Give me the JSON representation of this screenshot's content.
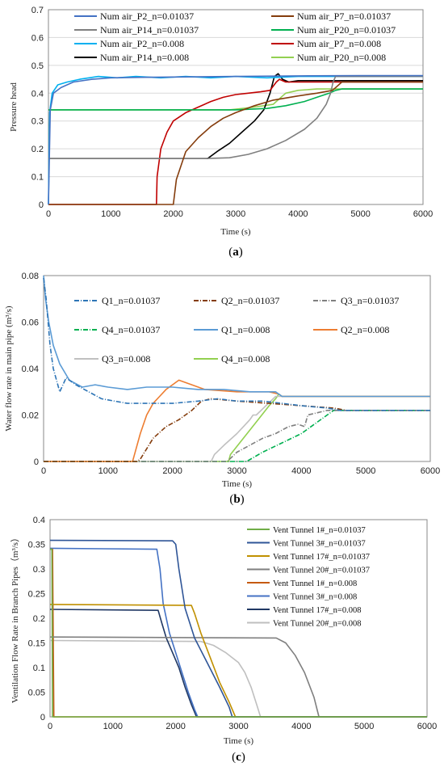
{
  "chart_data": [
    {
      "type": "line",
      "id": "a",
      "caption": "a",
      "xlabel": "Time (s)",
      "ylabel": "Pressure head",
      "xlim": [
        0,
        6000
      ],
      "ylim": [
        0,
        0.7
      ],
      "xticks": [
        0,
        1000,
        2000,
        3000,
        4000,
        5000,
        6000
      ],
      "yticks": [
        0,
        0.1,
        0.2,
        0.3,
        0.4,
        0.5,
        0.6,
        0.7
      ],
      "grid": true,
      "legend_position": "top",
      "series": [
        {
          "name": "Num air_P2_n=0.01037",
          "color": "#4472c4",
          "dash": "",
          "x": [
            0,
            30,
            80,
            200,
            400,
            700,
            1000,
            1500,
            2000,
            3000,
            4000,
            5000,
            6000
          ],
          "y": [
            0,
            0.34,
            0.4,
            0.42,
            0.44,
            0.45,
            0.455,
            0.457,
            0.458,
            0.46,
            0.462,
            0.463,
            0.463
          ]
        },
        {
          "name": "Num air_P7_n=0.01037",
          "color": "#843c0c",
          "dash": "",
          "x": [
            0,
            1990,
            2000,
            2050,
            2200,
            2400,
            2600,
            2800,
            3000,
            3300,
            3600,
            4000,
            4300,
            4550,
            4700,
            5000,
            6000
          ],
          "y": [
            0,
            0,
            0.0,
            0.09,
            0.19,
            0.24,
            0.28,
            0.31,
            0.33,
            0.355,
            0.375,
            0.39,
            0.4,
            0.41,
            0.44,
            0.44,
            0.44
          ]
        },
        {
          "name": "Num air_P14_n=0.01037",
          "color": "#7f7f7f",
          "dash": "",
          "x": [
            0,
            2500,
            2900,
            3200,
            3500,
            3800,
            4100,
            4300,
            4450,
            4520,
            4560,
            4600,
            5000,
            6000
          ],
          "y": [
            0.165,
            0.165,
            0.168,
            0.18,
            0.2,
            0.23,
            0.27,
            0.31,
            0.36,
            0.4,
            0.44,
            0.46,
            0.46,
            0.46
          ]
        },
        {
          "name": "Num air_P20_n=0.01037",
          "color": "#00b050",
          "dash": "",
          "x": [
            0,
            3000,
            3500,
            3800,
            4100,
            4300,
            4500,
            4600,
            4700,
            5000,
            6000
          ],
          "y": [
            0.34,
            0.34,
            0.345,
            0.355,
            0.37,
            0.385,
            0.4,
            0.41,
            0.415,
            0.415,
            0.415
          ]
        },
        {
          "name": "Num air_P2_n=0.008",
          "color": "#00b0f0",
          "dash": "",
          "x": [
            0,
            20,
            60,
            150,
            300,
            500,
            800,
            1100,
            1400,
            1800,
            2200,
            2600,
            3000,
            3500,
            4000,
            5000,
            6000
          ],
          "y": [
            0,
            0.33,
            0.4,
            0.43,
            0.44,
            0.45,
            0.46,
            0.455,
            0.46,
            0.455,
            0.46,
            0.455,
            0.46,
            0.455,
            0.46,
            0.46,
            0.46
          ]
        },
        {
          "name": "Num air_P7_n=0.008",
          "color": "#c00000",
          "dash": "",
          "x": [
            0,
            1730,
            1740,
            1800,
            1900,
            2000,
            2200,
            2400,
            2600,
            2800,
            3000,
            3200,
            3400,
            3550,
            3650,
            3700,
            3800,
            4000,
            6000
          ],
          "y": [
            0,
            0,
            0.1,
            0.2,
            0.26,
            0.3,
            0.33,
            0.35,
            0.37,
            0.385,
            0.395,
            0.4,
            0.405,
            0.41,
            0.44,
            0.45,
            0.44,
            0.44,
            0.44
          ]
        },
        {
          "name": "Num air_P14_n=0.008",
          "color": "#000000",
          "dash": "",
          "x": [
            0,
            2550,
            2700,
            2900,
            3100,
            3300,
            3450,
            3550,
            3620,
            3680,
            3750,
            3850,
            4000,
            6000
          ],
          "y": [
            0.165,
            0.165,
            0.19,
            0.22,
            0.26,
            0.3,
            0.34,
            0.4,
            0.46,
            0.47,
            0.45,
            0.44,
            0.445,
            0.445
          ]
        },
        {
          "name": "Num air_P20_n=0.008",
          "color": "#92d050",
          "dash": "",
          "x": [
            0,
            2900,
            3300,
            3600,
            3700,
            3800,
            4000,
            4300,
            4600,
            5000,
            6000
          ],
          "y": [
            0.34,
            0.34,
            0.35,
            0.36,
            0.38,
            0.4,
            0.41,
            0.415,
            0.415,
            0.415,
            0.415
          ]
        }
      ]
    },
    {
      "type": "line",
      "id": "b",
      "caption": "b",
      "xlabel": "Time (s)",
      "ylabel": "Water flow rate in main pipe (m³/s)",
      "xlim": [
        0,
        6000
      ],
      "ylim": [
        0,
        0.08
      ],
      "xticks": [
        0,
        1000,
        2000,
        3000,
        4000,
        5000,
        6000
      ],
      "yticks": [
        0,
        0.02,
        0.04,
        0.06,
        0.08
      ],
      "grid": false,
      "legend_position": "top",
      "series": [
        {
          "name": "Q1_n=0.01037",
          "color": "#2e75b6",
          "dash": "6 2 1 2",
          "x": [
            0,
            40,
            100,
            150,
            250,
            350,
            500,
            700,
            900,
            1100,
            1300,
            1500,
            2000,
            2400,
            2700,
            3000,
            3400,
            3700,
            4000,
            4400,
            4600,
            6000
          ],
          "y": [
            0.079,
            0.07,
            0.05,
            0.04,
            0.03,
            0.036,
            0.033,
            0.03,
            0.027,
            0.026,
            0.025,
            0.025,
            0.025,
            0.026,
            0.027,
            0.026,
            0.026,
            0.025,
            0.024,
            0.023,
            0.022,
            0.022
          ]
        },
        {
          "name": "Q2_n=0.01037",
          "color": "#843c0c",
          "dash": "6 2 1 2",
          "x": [
            0,
            1450,
            1500,
            1700,
            1900,
            2100,
            2300,
            2450,
            2600,
            3000,
            3500,
            4000,
            4500,
            4700,
            6000
          ],
          "y": [
            0,
            0,
            0.001,
            0.01,
            0.015,
            0.018,
            0.022,
            0.026,
            0.027,
            0.026,
            0.025,
            0.024,
            0.023,
            0.022,
            0.022
          ]
        },
        {
          "name": "Q3_n=0.01037",
          "color": "#7f7f7f",
          "dash": "6 2 1 2",
          "x": [
            0,
            2850,
            3000,
            3200,
            3400,
            3600,
            3800,
            3950,
            4050,
            4100,
            4400,
            4600,
            6000
          ],
          "y": [
            0,
            0,
            0.004,
            0.007,
            0.01,
            0.012,
            0.015,
            0.016,
            0.015,
            0.02,
            0.022,
            0.022,
            0.022
          ]
        },
        {
          "name": "Q4_n=0.01037",
          "color": "#00b050",
          "dash": "6 2 1 2",
          "x": [
            0,
            3150,
            3400,
            3700,
            4000,
            4200,
            4400,
            4500,
            4600,
            6000
          ],
          "y": [
            0,
            0,
            0.004,
            0.008,
            0.012,
            0.016,
            0.02,
            0.022,
            0.022,
            0.022
          ]
        },
        {
          "name": "Q1_n=0.008",
          "color": "#5b9bd5",
          "dash": "",
          "x": [
            0,
            30,
            80,
            150,
            250,
            400,
            600,
            800,
            1000,
            1300,
            1600,
            2000,
            2400,
            2800,
            3200,
            3600,
            3700,
            3800,
            6000
          ],
          "y": [
            0.08,
            0.07,
            0.06,
            0.05,
            0.042,
            0.035,
            0.032,
            0.033,
            0.032,
            0.031,
            0.032,
            0.032,
            0.031,
            0.031,
            0.03,
            0.03,
            0.028,
            0.028,
            0.028
          ]
        },
        {
          "name": "Q2_n=0.008",
          "color": "#ed7d31",
          "dash": "",
          "x": [
            0,
            1380,
            1400,
            1500,
            1600,
            1700,
            1800,
            1900,
            2000,
            2100,
            2500,
            3000,
            3500,
            3650,
            3700,
            6000
          ],
          "y": [
            0,
            0,
            0.002,
            0.012,
            0.02,
            0.025,
            0.028,
            0.031,
            0.033,
            0.035,
            0.031,
            0.03,
            0.03,
            0.029,
            0.028,
            0.028
          ]
        },
        {
          "name": "Q3_n=0.008",
          "color": "#c0c0c0",
          "dash": "",
          "x": [
            0,
            2600,
            2650,
            2800,
            3000,
            3100,
            3200,
            3250,
            3300,
            3600,
            4000,
            6000
          ],
          "y": [
            0,
            0,
            0.003,
            0.007,
            0.012,
            0.015,
            0.018,
            0.02,
            0.02,
            0.028,
            0.028,
            0.028
          ]
        },
        {
          "name": "Q4_n=0.008",
          "color": "#92d050",
          "dash": "",
          "x": [
            0,
            2870,
            2900,
            3100,
            3300,
            3500,
            3600,
            3650,
            3700,
            6000
          ],
          "y": [
            0,
            0,
            0.003,
            0.01,
            0.017,
            0.024,
            0.027,
            0.029,
            0.028,
            0.028
          ]
        }
      ]
    },
    {
      "type": "line",
      "id": "c",
      "caption": "c",
      "xlabel": "Time (s)",
      "ylabel": "Ventilation Flow Rate in Branch Pipes（m³/s）",
      "xlim": [
        0,
        6000
      ],
      "ylim": [
        0,
        0.4
      ],
      "xticks": [
        0,
        1000,
        2000,
        3000,
        4000,
        5000,
        6000
      ],
      "yticks": [
        0,
        0.05,
        0.1,
        0.15,
        0.2,
        0.25,
        0.3,
        0.35,
        0.4
      ],
      "grid": false,
      "legend_position": "right",
      "series": [
        {
          "name": "Vent Tunnel 1#_n=0.01037",
          "color": "#70ad47",
          "dash": "",
          "x": [
            0,
            30,
            40,
            6000
          ],
          "y": [
            0.34,
            0.34,
            0,
            0
          ]
        },
        {
          "name": "Vent Tunnel 3#_n=0.01037",
          "color": "#2f5597",
          "dash": "",
          "x": [
            0,
            1950,
            2000,
            2050,
            2150,
            2300,
            2500,
            2700,
            2850,
            2900,
            6000
          ],
          "y": [
            0.358,
            0.357,
            0.35,
            0.3,
            0.22,
            0.16,
            0.11,
            0.06,
            0.02,
            0,
            0
          ]
        },
        {
          "name": "Vent Tunnel 17#_n=0.01037",
          "color": "#c09000",
          "dash": "",
          "x": [
            0,
            2250,
            2300,
            2400,
            2550,
            2700,
            2850,
            2950,
            6000
          ],
          "y": [
            0.228,
            0.226,
            0.21,
            0.17,
            0.12,
            0.07,
            0.03,
            0,
            0
          ]
        },
        {
          "name": "Vent Tunnel 20#_n=0.01037",
          "color": "#7f7f7f",
          "dash": "",
          "x": [
            0,
            3600,
            3750,
            3900,
            4050,
            4200,
            4280,
            6000
          ],
          "y": [
            0.162,
            0.16,
            0.15,
            0.125,
            0.09,
            0.04,
            0,
            0
          ]
        },
        {
          "name": "Vent Tunnel 1#_n=0.008",
          "color": "#c55a11",
          "dash": "",
          "x": [
            0,
            40,
            60,
            6000
          ],
          "y": [
            0.34,
            0.34,
            0,
            0
          ]
        },
        {
          "name": "Vent Tunnel 3#_n=0.008",
          "color": "#4472c4",
          "dash": "",
          "x": [
            0,
            1700,
            1750,
            1800,
            1900,
            2000,
            2100,
            2200,
            2300,
            2350,
            6000
          ],
          "y": [
            0.342,
            0.34,
            0.3,
            0.23,
            0.17,
            0.13,
            0.09,
            0.05,
            0.015,
            0,
            0
          ]
        },
        {
          "name": "Vent Tunnel 17#_n=0.008",
          "color": "#203864",
          "dash": "",
          "x": [
            0,
            1720,
            1780,
            1850,
            1950,
            2050,
            2150,
            2250,
            2330,
            6000
          ],
          "y": [
            0.218,
            0.216,
            0.19,
            0.16,
            0.13,
            0.1,
            0.06,
            0.025,
            0,
            0
          ]
        },
        {
          "name": "Vent Tunnel 20#_n=0.008",
          "color": "#bfbfbf",
          "dash": "",
          "x": [
            0,
            2400,
            2600,
            2800,
            3000,
            3100,
            3200,
            3300,
            3350,
            6000
          ],
          "y": [
            0.155,
            0.153,
            0.145,
            0.13,
            0.11,
            0.09,
            0.06,
            0.02,
            0,
            0
          ]
        }
      ]
    }
  ]
}
